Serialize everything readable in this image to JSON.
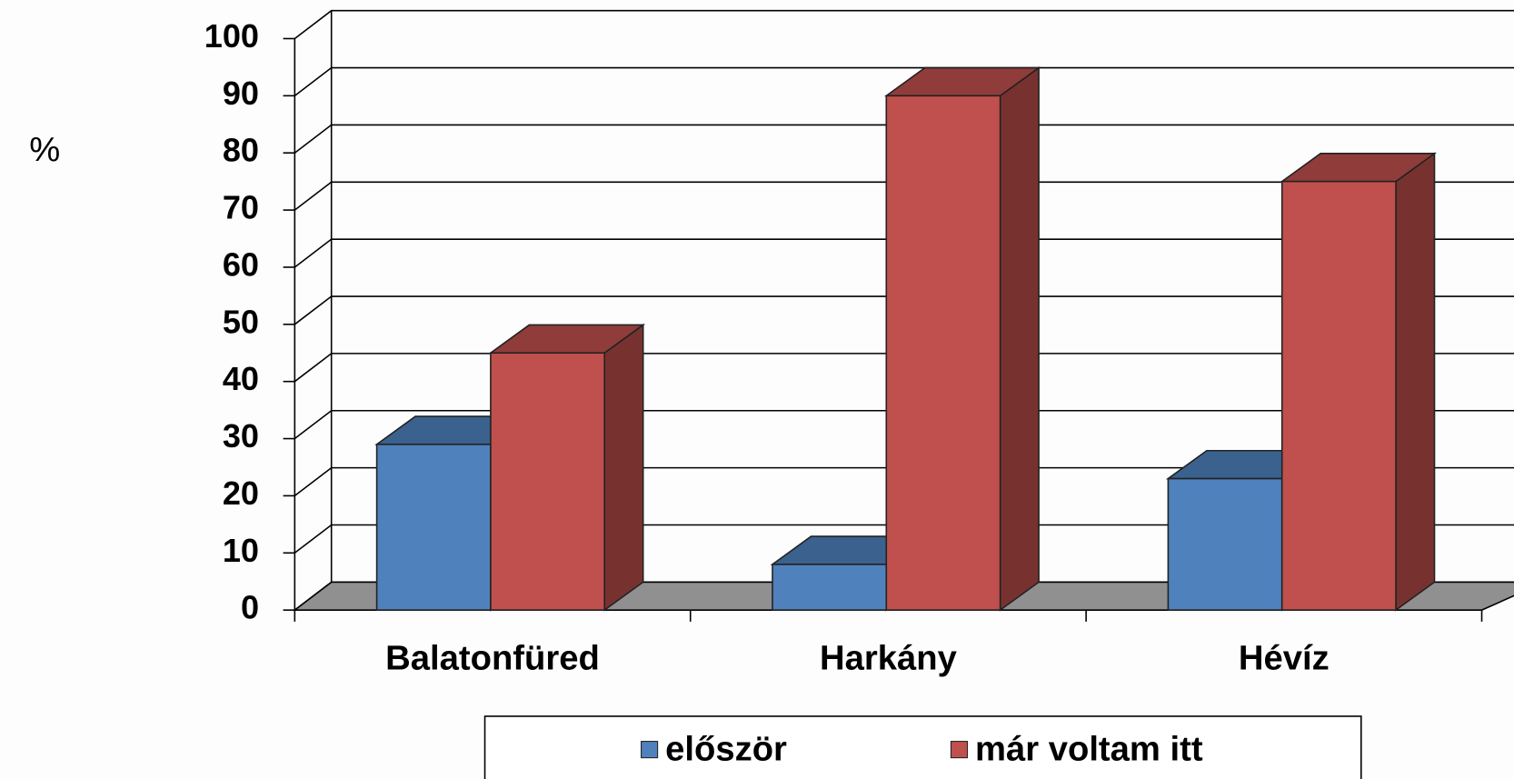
{
  "chart_data": {
    "type": "bar3d",
    "y_label": "%",
    "categories": [
      "Balatonfüred",
      "Harkány",
      "Hévíz"
    ],
    "series": [
      {
        "name": "először",
        "color": "#4f81bd",
        "values": [
          29,
          8,
          23
        ]
      },
      {
        "name": "már voltam itt",
        "color": "#c0504d",
        "values": [
          45,
          90,
          75
        ]
      }
    ],
    "ylim": [
      0,
      100
    ],
    "yticks": [
      0,
      10,
      20,
      30,
      40,
      50,
      60,
      70,
      80,
      90,
      100
    ],
    "grid": true,
    "legend": "bottom"
  }
}
